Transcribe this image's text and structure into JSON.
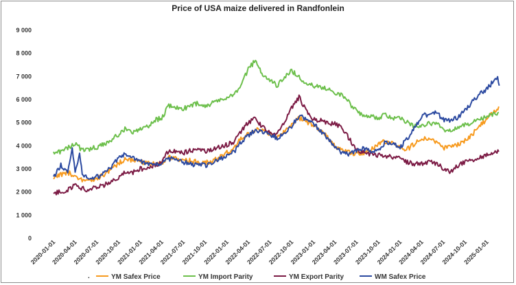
{
  "chart_data": {
    "type": "line",
    "title": "Price of USA maize delivered in Randfonlein",
    "xlabel": "",
    "ylabel": "",
    "ylim": [
      0,
      9000
    ],
    "yticks": [
      {
        "value": 0,
        "label": "0"
      },
      {
        "value": 1000,
        "label": "1 000"
      },
      {
        "value": 2000,
        "label": "2 000"
      },
      {
        "value": 3000,
        "label": "3 000"
      },
      {
        "value": 4000,
        "label": "4 000"
      },
      {
        "value": 5000,
        "label": "5 000"
      },
      {
        "value": 6000,
        "label": "6 000"
      },
      {
        "value": 7000,
        "label": "7 000"
      },
      {
        "value": 8000,
        "label": "8 000"
      },
      {
        "value": 9000,
        "label": "9 000"
      }
    ],
    "xlim": [
      "2020-01-01",
      "2025-03-01"
    ],
    "xticks": [
      "2020-01-01",
      "2020-04-01",
      "2020-07-01",
      "2020-10-01",
      "2021-01-01",
      "2021-04-01",
      "2021-07-01",
      "2021-10-01",
      "2022-01-01",
      "2022-04-01",
      "2022-07-01",
      "2022-10-01",
      "2023-01-01",
      "2023-04-01",
      "2023-07-01",
      "2023-10-01",
      "2024-01-01",
      "2024-04-01",
      "2024-07-01",
      "2024-10-01",
      "2025-01-01"
    ],
    "grid": false,
    "legend_position": "bottom",
    "series": [
      {
        "name": "YM Safex Price",
        "color": "#f79a1e",
        "points": [
          [
            "2020-01-01",
            2650
          ],
          [
            "2020-02-01",
            2750
          ],
          [
            "2020-03-01",
            2850
          ],
          [
            "2020-04-01",
            2700
          ],
          [
            "2020-05-01",
            2550
          ],
          [
            "2020-06-01",
            2500
          ],
          [
            "2020-07-01",
            2600
          ],
          [
            "2020-08-01",
            2750
          ],
          [
            "2020-09-01",
            3000
          ],
          [
            "2020-10-01",
            3250
          ],
          [
            "2020-11-01",
            3450
          ],
          [
            "2020-12-01",
            3350
          ],
          [
            "2021-01-01",
            3300
          ],
          [
            "2021-02-01",
            3250
          ],
          [
            "2021-03-01",
            3200
          ],
          [
            "2021-04-01",
            3250
          ],
          [
            "2021-05-01",
            3500
          ],
          [
            "2021-06-01",
            3450
          ],
          [
            "2021-07-01",
            3400
          ],
          [
            "2021-08-01",
            3350
          ],
          [
            "2021-09-01",
            3300
          ],
          [
            "2021-10-01",
            3250
          ],
          [
            "2021-11-01",
            3350
          ],
          [
            "2021-12-01",
            3500
          ],
          [
            "2022-01-01",
            3700
          ],
          [
            "2022-02-01",
            3900
          ],
          [
            "2022-03-01",
            4300
          ],
          [
            "2022-04-01",
            4500
          ],
          [
            "2022-05-01",
            4700
          ],
          [
            "2022-06-01",
            4650
          ],
          [
            "2022-07-01",
            4500
          ],
          [
            "2022-08-01",
            4350
          ],
          [
            "2022-09-01",
            4600
          ],
          [
            "2022-10-01",
            4900
          ],
          [
            "2022-11-01",
            5200
          ],
          [
            "2022-12-01",
            5050
          ],
          [
            "2023-01-01",
            4900
          ],
          [
            "2023-02-01",
            4650
          ],
          [
            "2023-03-01",
            4400
          ],
          [
            "2023-04-01",
            4000
          ],
          [
            "2023-05-01",
            3800
          ],
          [
            "2023-06-01",
            3700
          ],
          [
            "2023-07-01",
            3650
          ],
          [
            "2023-08-01",
            3700
          ],
          [
            "2023-09-01",
            3850
          ],
          [
            "2023-10-01",
            4050
          ],
          [
            "2023-11-01",
            4200
          ],
          [
            "2023-12-01",
            4100
          ],
          [
            "2024-01-01",
            3950
          ],
          [
            "2024-02-01",
            3850
          ],
          [
            "2024-03-01",
            4100
          ],
          [
            "2024-04-01",
            4350
          ],
          [
            "2024-05-01",
            4250
          ],
          [
            "2024-06-01",
            4150
          ],
          [
            "2024-07-01",
            3900
          ],
          [
            "2024-08-01",
            3950
          ],
          [
            "2024-09-01",
            4050
          ],
          [
            "2024-10-01",
            4250
          ],
          [
            "2024-11-01",
            4500
          ],
          [
            "2024-12-01",
            4850
          ],
          [
            "2025-01-01",
            5150
          ],
          [
            "2025-02-01",
            5500
          ],
          [
            "2025-02-20",
            5700
          ]
        ]
      },
      {
        "name": "YM Import Parity",
        "color": "#6cbf4b",
        "points": [
          [
            "2020-01-01",
            3650
          ],
          [
            "2020-02-01",
            3750
          ],
          [
            "2020-03-01",
            3900
          ],
          [
            "2020-04-01",
            4100
          ],
          [
            "2020-05-01",
            3800
          ],
          [
            "2020-06-01",
            3850
          ],
          [
            "2020-07-01",
            3950
          ],
          [
            "2020-08-01",
            4050
          ],
          [
            "2020-09-01",
            4250
          ],
          [
            "2020-10-01",
            4500
          ],
          [
            "2020-11-01",
            4750
          ],
          [
            "2020-12-01",
            4600
          ],
          [
            "2021-01-01",
            4700
          ],
          [
            "2021-02-01",
            4850
          ],
          [
            "2021-03-01",
            5100
          ],
          [
            "2021-04-01",
            5200
          ],
          [
            "2021-05-01",
            5750
          ],
          [
            "2021-06-01",
            5650
          ],
          [
            "2021-07-01",
            5600
          ],
          [
            "2021-08-01",
            5750
          ],
          [
            "2021-09-01",
            5850
          ],
          [
            "2021-10-01",
            5700
          ],
          [
            "2021-11-01",
            5850
          ],
          [
            "2021-12-01",
            5950
          ],
          [
            "2022-01-01",
            6050
          ],
          [
            "2022-02-01",
            6200
          ],
          [
            "2022-03-01",
            6600
          ],
          [
            "2022-04-01",
            7300
          ],
          [
            "2022-05-01",
            7700
          ],
          [
            "2022-06-01",
            7000
          ],
          [
            "2022-07-01",
            6850
          ],
          [
            "2022-08-01",
            6600
          ],
          [
            "2022-09-01",
            7000
          ],
          [
            "2022-10-01",
            7250
          ],
          [
            "2022-11-01",
            7000
          ],
          [
            "2022-12-01",
            6650
          ],
          [
            "2023-01-01",
            6600
          ],
          [
            "2023-02-01",
            6500
          ],
          [
            "2023-03-01",
            6450
          ],
          [
            "2023-04-01",
            6300
          ],
          [
            "2023-05-01",
            6200
          ],
          [
            "2023-06-01",
            5850
          ],
          [
            "2023-07-01",
            5500
          ],
          [
            "2023-08-01",
            5300
          ],
          [
            "2023-09-01",
            5250
          ],
          [
            "2023-10-01",
            5200
          ],
          [
            "2023-11-01",
            5350
          ],
          [
            "2023-12-01",
            5150
          ],
          [
            "2024-01-01",
            5250
          ],
          [
            "2024-02-01",
            5000
          ],
          [
            "2024-03-01",
            4850
          ],
          [
            "2024-04-01",
            4900
          ],
          [
            "2024-05-01",
            4950
          ],
          [
            "2024-06-01",
            5000
          ],
          [
            "2024-07-01",
            4700
          ],
          [
            "2024-08-01",
            4650
          ],
          [
            "2024-09-01",
            4750
          ],
          [
            "2024-10-01",
            4900
          ],
          [
            "2024-11-01",
            5050
          ],
          [
            "2024-12-01",
            5150
          ],
          [
            "2025-01-01",
            5250
          ],
          [
            "2025-02-01",
            5400
          ],
          [
            "2025-02-20",
            5450
          ]
        ]
      },
      {
        "name": "YM Export Parity",
        "color": "#7b1a44",
        "points": [
          [
            "2020-01-01",
            1950
          ],
          [
            "2020-02-01",
            2000
          ],
          [
            "2020-03-01",
            2100
          ],
          [
            "2020-04-01",
            2300
          ],
          [
            "2020-05-01",
            2150
          ],
          [
            "2020-06-01",
            2100
          ],
          [
            "2020-07-01",
            2200
          ],
          [
            "2020-08-01",
            2300
          ],
          [
            "2020-09-01",
            2450
          ],
          [
            "2020-10-01",
            2650
          ],
          [
            "2020-11-01",
            2900
          ],
          [
            "2020-12-01",
            2850
          ],
          [
            "2021-01-01",
            3000
          ],
          [
            "2021-02-01",
            3050
          ],
          [
            "2021-03-01",
            3150
          ],
          [
            "2021-04-01",
            3300
          ],
          [
            "2021-05-01",
            3800
          ],
          [
            "2021-06-01",
            3750
          ],
          [
            "2021-07-01",
            3700
          ],
          [
            "2021-08-01",
            3800
          ],
          [
            "2021-09-01",
            3850
          ],
          [
            "2021-10-01",
            3750
          ],
          [
            "2021-11-01",
            3850
          ],
          [
            "2021-12-01",
            3950
          ],
          [
            "2022-01-01",
            4050
          ],
          [
            "2022-02-01",
            4200
          ],
          [
            "2022-03-01",
            4600
          ],
          [
            "2022-04-01",
            5000
          ],
          [
            "2022-05-01",
            5200
          ],
          [
            "2022-06-01",
            4800
          ],
          [
            "2022-07-01",
            4600
          ],
          [
            "2022-08-01",
            4500
          ],
          [
            "2022-09-01",
            5050
          ],
          [
            "2022-10-01",
            5650
          ],
          [
            "2022-11-01",
            6100
          ],
          [
            "2022-12-01",
            5500
          ],
          [
            "2023-01-01",
            5150
          ],
          [
            "2023-02-01",
            5100
          ],
          [
            "2023-03-01",
            4950
          ],
          [
            "2023-04-01",
            4950
          ],
          [
            "2023-05-01",
            4800
          ],
          [
            "2023-06-01",
            4300
          ],
          [
            "2023-07-01",
            3850
          ],
          [
            "2023-08-01",
            3700
          ],
          [
            "2023-09-01",
            3650
          ],
          [
            "2023-10-01",
            3600
          ],
          [
            "2023-11-01",
            3550
          ],
          [
            "2023-12-01",
            3500
          ],
          [
            "2024-01-01",
            3450
          ],
          [
            "2024-02-01",
            3300
          ],
          [
            "2024-03-01",
            3200
          ],
          [
            "2024-04-01",
            3250
          ],
          [
            "2024-05-01",
            3300
          ],
          [
            "2024-06-01",
            3250
          ],
          [
            "2024-07-01",
            3000
          ],
          [
            "2024-08-01",
            2900
          ],
          [
            "2024-09-01",
            3150
          ],
          [
            "2024-10-01",
            3300
          ],
          [
            "2024-11-01",
            3400
          ],
          [
            "2024-12-01",
            3500
          ],
          [
            "2025-01-01",
            3600
          ],
          [
            "2025-02-01",
            3700
          ],
          [
            "2025-02-20",
            3750
          ]
        ]
      },
      {
        "name": "WM Safex Price",
        "color": "#2b49a0",
        "points": [
          [
            "2020-01-01",
            2650
          ],
          [
            "2020-02-01",
            3150
          ],
          [
            "2020-03-01",
            2900
          ],
          [
            "2020-03-20",
            3950
          ],
          [
            "2020-04-01",
            2900
          ],
          [
            "2020-04-20",
            3700
          ],
          [
            "2020-05-01",
            2700
          ],
          [
            "2020-06-01",
            2600
          ],
          [
            "2020-07-01",
            2650
          ],
          [
            "2020-08-01",
            2800
          ],
          [
            "2020-09-01",
            3100
          ],
          [
            "2020-10-01",
            3450
          ],
          [
            "2020-11-01",
            3650
          ],
          [
            "2020-12-01",
            3450
          ],
          [
            "2021-01-01",
            3350
          ],
          [
            "2021-02-01",
            3250
          ],
          [
            "2021-03-01",
            3200
          ],
          [
            "2021-04-01",
            3200
          ],
          [
            "2021-05-01",
            3450
          ],
          [
            "2021-06-01",
            3400
          ],
          [
            "2021-07-01",
            3300
          ],
          [
            "2021-08-01",
            3200
          ],
          [
            "2021-09-01",
            3200
          ],
          [
            "2021-10-01",
            3150
          ],
          [
            "2021-11-01",
            3250
          ],
          [
            "2021-12-01",
            3400
          ],
          [
            "2022-01-01",
            3600
          ],
          [
            "2022-02-01",
            3750
          ],
          [
            "2022-03-01",
            4150
          ],
          [
            "2022-04-01",
            4450
          ],
          [
            "2022-05-01",
            4650
          ],
          [
            "2022-06-01",
            4600
          ],
          [
            "2022-07-01",
            4450
          ],
          [
            "2022-08-01",
            4350
          ],
          [
            "2022-09-01",
            4550
          ],
          [
            "2022-10-01",
            4850
          ],
          [
            "2022-11-01",
            5300
          ],
          [
            "2022-12-01",
            5150
          ],
          [
            "2023-01-01",
            4950
          ],
          [
            "2023-02-01",
            4650
          ],
          [
            "2023-03-01",
            4350
          ],
          [
            "2023-04-01",
            3950
          ],
          [
            "2023-05-01",
            3700
          ],
          [
            "2023-06-01",
            3650
          ],
          [
            "2023-07-01",
            3750
          ],
          [
            "2023-08-01",
            3900
          ],
          [
            "2023-09-01",
            3700
          ],
          [
            "2023-10-01",
            3850
          ],
          [
            "2023-11-01",
            4150
          ],
          [
            "2023-12-01",
            4100
          ],
          [
            "2024-01-01",
            3950
          ],
          [
            "2024-02-01",
            4300
          ],
          [
            "2024-03-01",
            4750
          ],
          [
            "2024-04-01",
            5300
          ],
          [
            "2024-05-01",
            5350
          ],
          [
            "2024-06-01",
            5450
          ],
          [
            "2024-07-01",
            5150
          ],
          [
            "2024-08-01",
            5050
          ],
          [
            "2024-09-01",
            5250
          ],
          [
            "2024-10-01",
            5550
          ],
          [
            "2024-11-01",
            5900
          ],
          [
            "2024-12-01",
            6250
          ],
          [
            "2025-01-01",
            6450
          ],
          [
            "2025-02-01",
            6850
          ],
          [
            "2025-02-15",
            6950
          ],
          [
            "2025-02-22",
            6600
          ]
        ]
      }
    ]
  },
  "legend_marker_glyph": "."
}
